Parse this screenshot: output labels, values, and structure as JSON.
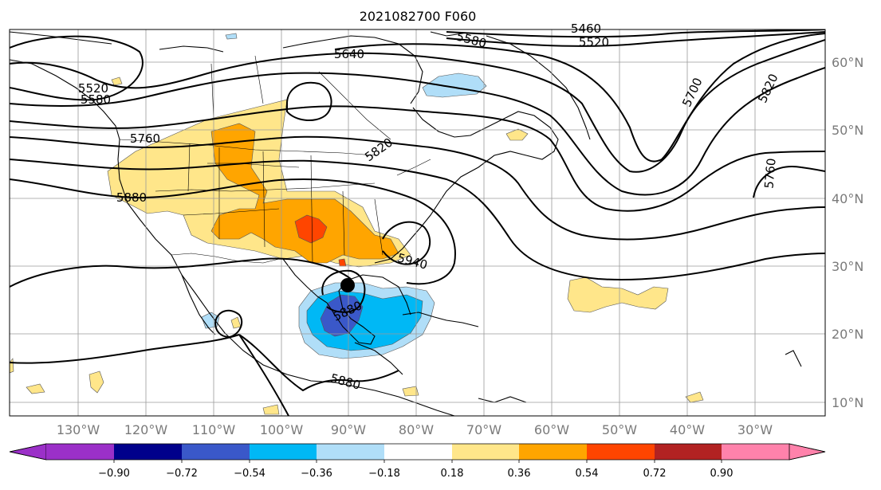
{
  "title": "2021082700 F060",
  "lon_labels": [
    "130°W",
    "120°W",
    "110°W",
    "100°W",
    "90°W",
    "80°W",
    "70°W",
    "60°W",
    "50°W",
    "40°W",
    "30°W"
  ],
  "lat_labels": [
    "60°N",
    "50°N",
    "40°N",
    "30°N",
    "20°N",
    "10°N"
  ],
  "contour_labels": [
    "5460",
    "5520",
    "5580",
    "5640",
    "5520",
    "5580",
    "5760",
    "5820",
    "5880",
    "5700",
    "5820",
    "5760",
    "5940",
    "5880",
    "5880"
  ],
  "colorbar": {
    "ticks": [
      "−0.90",
      "−0.72",
      "−0.54",
      "−0.36",
      "−0.18",
      "0.18",
      "0.36",
      "0.54",
      "0.72",
      "0.90"
    ],
    "colors": [
      "#9b30c8",
      "#00008b",
      "#3a58c9",
      "#00b8f5",
      "#b0def8",
      "#ffffff",
      "#ffe68a",
      "#ffa500",
      "#ff4500",
      "#b22222",
      "#ff82ab"
    ]
  },
  "storm_marker": "tropical-storm-center"
}
